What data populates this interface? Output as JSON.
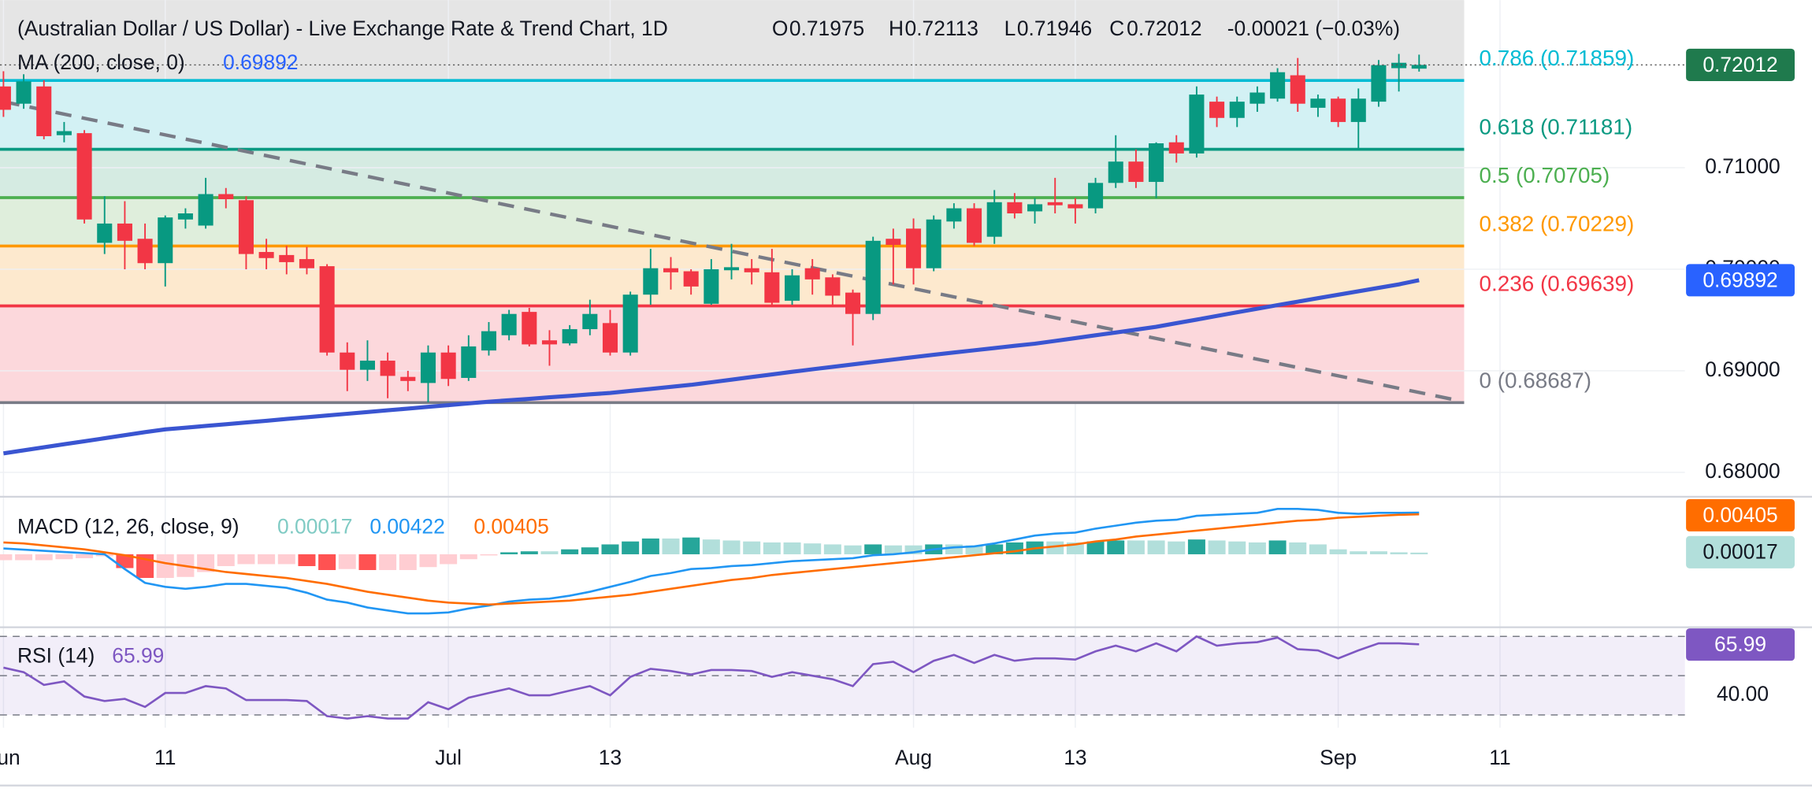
{
  "chart_data": {
    "type": "candlestick",
    "title": "(Australian Dollar / US Dollar) - Live Exchange Rate & Trend Chart, 1D",
    "ohlc_labels": [
      "O",
      "H",
      "L",
      "C"
    ],
    "change": "-0.00021 (−0.03%)",
    "up_color": "#089981",
    "down_color": "#f23645",
    "categories": [
      "Jun",
      null,
      null,
      null,
      null,
      null,
      null,
      null,
      "11",
      null,
      null,
      null,
      null,
      null,
      null,
      null,
      null,
      null,
      null,
      null,
      null,
      null,
      "Jul",
      null,
      null,
      null,
      null,
      null,
      null,
      null,
      "13",
      null,
      null,
      null,
      null,
      null,
      null,
      null,
      null,
      null,
      null,
      null,
      null,
      null,
      null,
      "Aug",
      null,
      null,
      null,
      null,
      null,
      null,
      null,
      "13",
      null,
      null,
      null,
      null,
      null,
      null,
      null,
      null,
      null,
      null,
      null,
      null,
      "Sep",
      null,
      null,
      null,
      null,
      null,
      null,
      null,
      "11"
    ],
    "open": [
      0.718,
      0.7163,
      0.718,
      0.7132,
      0.7134,
      0.7026,
      0.7045,
      0.703,
      0.7006,
      0.7049,
      0.7043,
      0.7074,
      0.7068,
      0.7017,
      0.7014,
      0.701,
      0.7003,
      0.6918,
      0.6901,
      0.691,
      0.6894,
      0.6888,
      0.6918,
      0.6893,
      0.692,
      0.6935,
      0.6958,
      0.693,
      0.6927,
      0.6941,
      0.6947,
      0.6918,
      0.6975,
      0.7001,
      0.6998,
      0.6966,
      0.6999,
      0.7001,
      0.6997,
      0.6969,
      0.7001,
      0.6992,
      0.6977,
      0.6956,
      0.703,
      0.704,
      0.7001,
      0.7047,
      0.706,
      0.7032,
      0.7066,
      0.7057,
      0.7066,
      0.7064,
      0.706,
      0.7085,
      0.7106,
      0.7086,
      0.7125,
      0.7114,
      0.7165,
      0.7149,
      0.7163,
      0.7168,
      0.7191,
      0.7159,
      0.7168,
      0.7145,
      0.7165,
      0.7198,
      0.71975,
      null,
      null,
      null,
      null
    ],
    "high": [
      0.7195,
      0.7192,
      0.7186,
      0.7145,
      0.7137,
      0.7072,
      0.7067,
      0.7045,
      0.7053,
      0.706,
      0.709,
      0.708,
      0.7072,
      0.703,
      0.7023,
      0.7022,
      0.7005,
      0.6928,
      0.693,
      0.6918,
      0.69,
      0.6925,
      0.6925,
      0.6935,
      0.6948,
      0.696,
      0.6962,
      0.694,
      0.6945,
      0.697,
      0.696,
      0.6978,
      0.702,
      0.7012,
      0.7,
      0.701,
      0.7025,
      0.701,
      0.702,
      0.7,
      0.701,
      0.6995,
      0.698,
      0.7032,
      0.704,
      0.705,
      0.7053,
      0.7065,
      0.7065,
      0.7078,
      0.7075,
      0.707,
      0.709,
      0.707,
      0.709,
      0.7132,
      0.7118,
      0.7125,
      0.7132,
      0.718,
      0.717,
      0.717,
      0.718,
      0.7198,
      0.7208,
      0.7172,
      0.717,
      0.7178,
      0.7206,
      0.7212,
      0.72113,
      null,
      null,
      null,
      null
    ],
    "low": [
      0.715,
      0.7158,
      0.7128,
      0.7125,
      0.7045,
      0.7015,
      0.7,
      0.7,
      0.6983,
      0.704,
      0.704,
      0.706,
      0.7,
      0.7,
      0.6995,
      0.6995,
      0.6915,
      0.688,
      0.689,
      0.6873,
      0.688,
      0.6869,
      0.6885,
      0.689,
      0.6915,
      0.693,
      0.6924,
      0.6905,
      0.6925,
      0.6935,
      0.6915,
      0.6915,
      0.6965,
      0.698,
      0.6975,
      0.6965,
      0.699,
      0.6985,
      0.6965,
      0.6965,
      0.6975,
      0.6965,
      0.6925,
      0.695,
      0.6985,
      0.6985,
      0.6998,
      0.704,
      0.7023,
      0.7025,
      0.705,
      0.7045,
      0.7055,
      0.7045,
      0.7055,
      0.708,
      0.708,
      0.707,
      0.7105,
      0.711,
      0.714,
      0.714,
      0.7155,
      0.7165,
      0.7155,
      0.715,
      0.714,
      0.7118,
      0.716,
      0.7175,
      0.71946,
      null,
      null,
      null,
      null
    ],
    "close": [
      0.7157,
      0.7185,
      0.7131,
      0.7136,
      0.7049,
      0.7045,
      0.7028,
      0.7006,
      0.7051,
      0.7055,
      0.7074,
      0.7069,
      0.7015,
      0.7011,
      0.7007,
      0.7001,
      0.6918,
      0.6901,
      0.691,
      0.6895,
      0.689,
      0.6918,
      0.6892,
      0.6924,
      0.6939,
      0.6956,
      0.6926,
      0.6926,
      0.6941,
      0.6956,
      0.6918,
      0.6975,
      0.7001,
      0.6997,
      0.6983,
      0.7,
      0.7002,
      0.6997,
      0.6967,
      0.6994,
      0.699,
      0.6974,
      0.6956,
      0.7028,
      0.7024,
      0.7001,
      0.7049,
      0.706,
      0.7026,
      0.7066,
      0.7055,
      0.7064,
      0.7063,
      0.706,
      0.7085,
      0.7106,
      0.7086,
      0.7124,
      0.7114,
      0.7172,
      0.7149,
      0.7165,
      0.7174,
      0.7194,
      0.7163,
      0.7168,
      0.7145,
      0.7168,
      0.7201,
      0.72033,
      0.72012,
      null,
      null,
      null,
      null
    ],
    "ylim": [
      0.6776,
      0.7265
    ],
    "yticks": [
      {
        "value": 0.68,
        "label": "0.68000"
      },
      {
        "value": 0.69,
        "label": "0.69000"
      },
      {
        "value": 0.7,
        "label": "0.70000"
      },
      {
        "value": 0.71,
        "label": "0.71000"
      }
    ],
    "last_color": "#1f7a4d",
    "ma": {
      "name": "MA (200, close, 0)",
      "color": "#3a55d1",
      "tag_color": "#2962ff",
      "values": [
        0.68187,
        0.68217,
        0.68247,
        0.68277,
        0.68306,
        0.68336,
        0.68366,
        0.68396,
        0.68423,
        0.6844,
        0.68457,
        0.68474,
        0.68491,
        0.68508,
        0.68526,
        0.68543,
        0.6856,
        0.68577,
        0.68594,
        0.68611,
        0.68628,
        0.68645,
        0.68662,
        0.68679,
        0.68696,
        0.6871,
        0.68724,
        0.68739,
        0.68753,
        0.68768,
        0.68782,
        0.68802,
        0.68822,
        0.68842,
        0.68862,
        0.68887,
        0.68913,
        0.68939,
        0.68964,
        0.6899,
        0.69015,
        0.69039,
        0.69063,
        0.69087,
        0.69111,
        0.69135,
        0.69158,
        0.6918,
        0.69202,
        0.69224,
        0.69246,
        0.69267,
        0.69294,
        0.69322,
        0.6935,
        0.69377,
        0.69405,
        0.69433,
        0.69469,
        0.69504,
        0.6954,
        0.69576,
        0.69611,
        0.69647,
        0.69681,
        0.69715,
        0.69749,
        0.69783,
        0.69817,
        0.69851,
        0.69892,
        null,
        null,
        null,
        null
      ]
    },
    "trendline": {
      "color": "#787b86",
      "x": [
        0,
        72
      ],
      "values": [
        0.7165,
        0.68705
      ]
    },
    "fib_levels": [
      {
        "label": "0.786 (0.71859)",
        "value": 0.71859,
        "color": "#00bcd4",
        "fill": "#d3f1f4"
      },
      {
        "label": "0.618 (0.71181)",
        "value": 0.71181,
        "color": "#089981",
        "fill": "#d5ebe2"
      },
      {
        "label": "0.5 (0.70705)",
        "value": 0.70705,
        "color": "#4caf50",
        "fill": "#dfeedc"
      },
      {
        "label": "0.382 (0.70229)",
        "value": 0.70229,
        "color": "#ff9800",
        "fill": "#fde9ce"
      },
      {
        "label": "0.236 (0.69639)",
        "value": 0.69639,
        "color": "#f23645",
        "fill": "#fcd8dc"
      },
      {
        "label": "0 (0.68687)",
        "value": 0.68687,
        "color": "#787b86"
      }
    ],
    "macd": {
      "name": "MACD (12, 26, close, 9)",
      "ylim": [
        -0.0074,
        0.0056
      ],
      "macd": {
        "color": "#2196f3",
        "values": [
          0.00059,
          0.00047,
          0.00035,
          0.00023,
          0.00012,
          0,
          -0.0015,
          -0.0029,
          -0.0033,
          -0.0035,
          -0.0033,
          -0.003,
          -0.003,
          -0.0032,
          -0.0034,
          -0.0039,
          -0.0046,
          -0.0049,
          -0.0054,
          -0.0057,
          -0.006,
          -0.006,
          -0.0059,
          -0.0055,
          -0.0052,
          -0.0048,
          -0.0046,
          -0.0045,
          -0.0042,
          -0.0038,
          -0.0033,
          -0.0028,
          -0.0022,
          -0.0019,
          -0.0015,
          -0.0014,
          -0.0012,
          -0.0011,
          -0.0009,
          -0.0007,
          -0.0006,
          -0.0005,
          -0.0004,
          -0.0001,
          0,
          0.0002,
          0.0005,
          0.0007,
          0.0008,
          0.0011,
          0.0015,
          0.0019,
          0.0021,
          0.0022,
          0.0026,
          0.0029,
          0.0032,
          0.0034,
          0.0035,
          0.0039,
          0.004,
          0.0041,
          0.0042,
          0.0046,
          0.0046,
          0.0045,
          0.0042,
          0.0041,
          0.0042,
          0.0042,
          0.00422,
          null,
          null,
          null,
          null
        ]
      },
      "signal": {
        "color": "#ff6d00",
        "values": [
          0.0012,
          0.0011,
          0.0009,
          0.0007,
          0.0005,
          0.0002,
          -0.0001,
          -0.0005,
          -0.0009,
          -0.0012,
          -0.0015,
          -0.0018,
          -0.002,
          -0.0022,
          -0.0024,
          -0.0027,
          -0.003,
          -0.0034,
          -0.0038,
          -0.0041,
          -0.0044,
          -0.0047,
          -0.0049,
          -0.005,
          -0.0051,
          -0.005,
          -0.0049,
          -0.0048,
          -0.0047,
          -0.0045,
          -0.0043,
          -0.0041,
          -0.0038,
          -0.0035,
          -0.0032,
          -0.0029,
          -0.0026,
          -0.0024,
          -0.0021,
          -0.0019,
          -0.0017,
          -0.0015,
          -0.0013,
          -0.0011,
          -0.0009,
          -0.0007,
          -0.0005,
          -0.0003,
          -0.0001,
          0.0001,
          0.0003,
          0.0006,
          0.0008,
          0.001,
          0.0013,
          0.0015,
          0.0018,
          0.002,
          0.0022,
          0.0024,
          0.0026,
          0.0028,
          0.003,
          0.0032,
          0.0034,
          0.0035,
          0.0037,
          0.0038,
          0.0039,
          0.004,
          0.00405,
          null,
          null,
          null,
          null
        ]
      },
      "histogram": {
        "colors": [
          "#26a69a",
          "#b2dfdb",
          "#ff5252",
          "#ffcdd2"
        ],
        "label_color": "#80cbc4",
        "values": [
          -0.0006,
          -0.0006,
          -0.0006,
          -0.0005,
          -0.0004,
          -0.0002,
          -0.0014,
          -0.0024,
          -0.0024,
          -0.0023,
          -0.0018,
          -0.0012,
          -0.001,
          -0.001,
          -0.001,
          -0.0012,
          -0.0016,
          -0.0015,
          -0.0016,
          -0.0016,
          -0.0016,
          -0.0013,
          -0.001,
          -0.0005,
          -0.0001,
          0.0002,
          0.0003,
          0.0003,
          0.0005,
          0.0007,
          0.001,
          0.0013,
          0.0016,
          0.0016,
          0.0017,
          0.0015,
          0.0014,
          0.0013,
          0.0012,
          0.0012,
          0.0011,
          0.001,
          0.0009,
          0.001,
          0.0009,
          0.0009,
          0.001,
          0.001,
          0.0009,
          0.001,
          0.0012,
          0.0013,
          0.0013,
          0.0012,
          0.0013,
          0.0014,
          0.0014,
          0.0014,
          0.0013,
          0.0015,
          0.0014,
          0.0013,
          0.0012,
          0.0014,
          0.0012,
          0.001,
          0.0005,
          0.0003,
          0.0003,
          0.0002,
          0.00017,
          null,
          null,
          null,
          null
        ]
      }
    },
    "rsi": {
      "name": "RSI (14)",
      "color": "#7e57c2",
      "ylim": [
        23.5,
        73.5
      ],
      "yticks": [
        {
          "value": 40,
          "label": "40.00"
        }
      ],
      "levels": [
        70,
        50,
        30
      ],
      "values": [
        54.1,
        51.8,
        45.3,
        47.1,
        39.4,
        37.1,
        38.2,
        34.1,
        41.2,
        41.2,
        44.7,
        43.5,
        37.6,
        37.6,
        37.6,
        37.1,
        29.4,
        28.2,
        29.4,
        28.2,
        28.2,
        36.5,
        32.9,
        38.8,
        41.2,
        43.5,
        40.0,
        40.0,
        42.4,
        44.7,
        40.0,
        49.4,
        53.5,
        52.4,
        50.6,
        52.9,
        52.9,
        52.4,
        49.4,
        51.8,
        50.0,
        48.2,
        44.7,
        55.9,
        57.1,
        51.8,
        57.6,
        60.6,
        56.5,
        60.6,
        57.6,
        58.8,
        58.8,
        58.2,
        62.4,
        65.3,
        62.4,
        66.5,
        62.4,
        70.0,
        65.3,
        66.5,
        67.1,
        69.4,
        63.5,
        62.9,
        58.8,
        62.9,
        66.5,
        66.5,
        65.99,
        null,
        null,
        null,
        null
      ]
    }
  }
}
